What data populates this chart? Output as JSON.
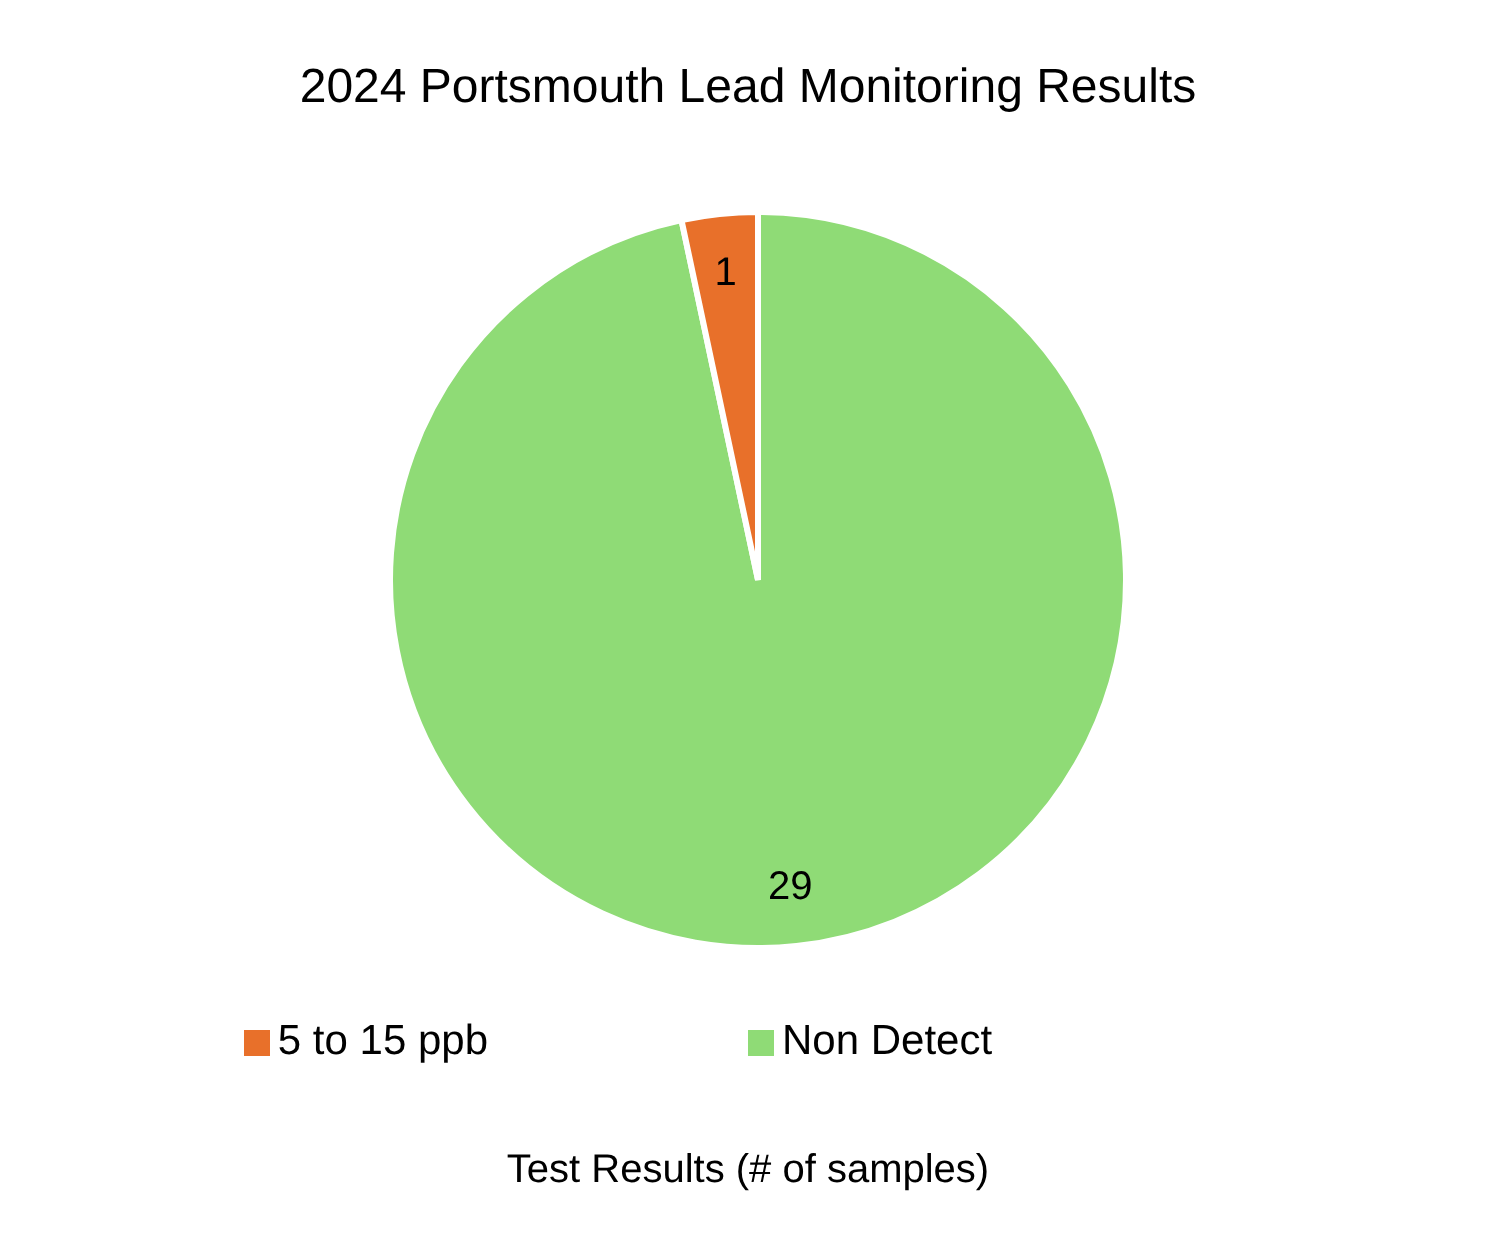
{
  "chart_data": {
    "type": "pie",
    "title": "2024 Portsmouth Lead Monitoring Results",
    "xlabel": "Test Results (# of samples)",
    "categories": [
      "Non Detect",
      "5 to 15 ppb"
    ],
    "values": [
      29,
      1
    ],
    "colors": [
      "#8fdb76",
      "#e8702a"
    ],
    "data_labels": true,
    "legend": "bottom"
  }
}
